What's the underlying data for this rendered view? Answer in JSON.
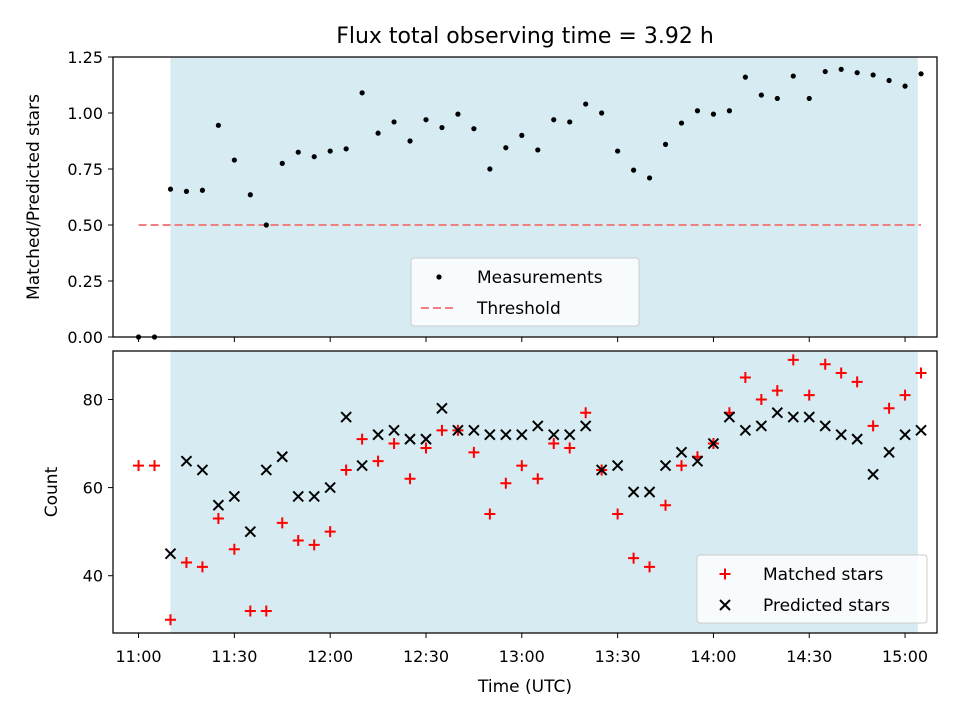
{
  "figure": {
    "title": "Flux total observing time = 3.92 h",
    "xlabel": "Time (UTC)",
    "x_ticks": [
      "11:00",
      "11:30",
      "12:00",
      "12:30",
      "13:00",
      "13:30",
      "14:00",
      "14:30",
      "15:00"
    ],
    "shade_color": "#add8e6"
  },
  "chart_data": [
    {
      "type": "scatter",
      "ylabel": "Matched/Predicted stars",
      "ylim": [
        0,
        1.25
      ],
      "y_ticks": [
        "0.00",
        "0.25",
        "0.50",
        "0.75",
        "1.00",
        "1.25"
      ],
      "x_unit": "time (UTC)",
      "xlim": [
        "10:52",
        "15:10"
      ],
      "shaded_interval": [
        "11:10",
        "15:04"
      ],
      "legend_position": "lower center",
      "series": [
        {
          "name": "Measurements",
          "marker": "dot",
          "color": "#000000",
          "x": [
            "11:00",
            "11:05",
            "11:10",
            "11:15",
            "11:20",
            "11:25",
            "11:30",
            "11:35",
            "11:40",
            "11:45",
            "11:50",
            "11:55",
            "12:00",
            "12:05",
            "12:10",
            "12:15",
            "12:20",
            "12:25",
            "12:30",
            "12:35",
            "12:40",
            "12:45",
            "12:50",
            "12:55",
            "13:00",
            "13:05",
            "13:10",
            "13:15",
            "13:20",
            "13:25",
            "13:30",
            "13:35",
            "13:40",
            "13:45",
            "13:50",
            "13:55",
            "14:00",
            "14:05",
            "14:10",
            "14:15",
            "14:20",
            "14:25",
            "14:30",
            "14:35",
            "14:40",
            "14:45",
            "14:50",
            "14:55",
            "15:00",
            "15:05"
          ],
          "y": [
            0.0,
            0.0,
            0.66,
            0.65,
            0.655,
            0.945,
            0.79,
            0.635,
            0.5,
            0.775,
            0.825,
            0.805,
            0.83,
            0.84,
            1.09,
            0.91,
            0.96,
            0.875,
            0.97,
            0.935,
            0.995,
            0.93,
            0.75,
            0.845,
            0.9,
            0.835,
            0.97,
            0.96,
            1.04,
            1.0,
            0.83,
            0.745,
            0.71,
            0.86,
            0.955,
            1.01,
            0.995,
            1.01,
            1.16,
            1.08,
            1.065,
            1.165,
            1.065,
            1.185,
            1.195,
            1.18,
            1.17,
            1.145,
            1.12,
            1.175
          ]
        },
        {
          "name": "Threshold",
          "style": "dashed",
          "color": "#f08080",
          "x": [
            "11:00",
            "15:05"
          ],
          "y": [
            0.5,
            0.5
          ]
        }
      ]
    },
    {
      "type": "scatter",
      "ylabel": "Count",
      "ylim": [
        27,
        91
      ],
      "y_ticks": [
        "40",
        "60",
        "80"
      ],
      "x_unit": "time (UTC)",
      "xlim": [
        "10:52",
        "15:10"
      ],
      "shaded_interval": [
        "11:10",
        "15:04"
      ],
      "legend_position": "lower right",
      "series": [
        {
          "name": "Matched stars",
          "marker": "plus",
          "color": "#ff0000",
          "x": [
            "11:00",
            "11:05",
            "11:10",
            "11:15",
            "11:20",
            "11:25",
            "11:30",
            "11:35",
            "11:40",
            "11:45",
            "11:50",
            "11:55",
            "12:00",
            "12:05",
            "12:10",
            "12:15",
            "12:20",
            "12:25",
            "12:30",
            "12:35",
            "12:40",
            "12:45",
            "12:50",
            "12:55",
            "13:00",
            "13:05",
            "13:10",
            "13:15",
            "13:20",
            "13:25",
            "13:30",
            "13:35",
            "13:40",
            "13:45",
            "13:50",
            "13:55",
            "14:00",
            "14:05",
            "14:10",
            "14:15",
            "14:20",
            "14:25",
            "14:30",
            "14:35",
            "14:40",
            "14:45",
            "14:50",
            "14:55",
            "15:00",
            "15:05"
          ],
          "y": [
            65,
            65,
            30,
            43,
            42,
            53,
            46,
            32,
            32,
            52,
            48,
            47,
            50,
            64,
            71,
            66,
            70,
            62,
            69,
            73,
            73,
            68,
            54,
            61,
            65,
            62,
            70,
            69,
            77,
            64,
            54,
            44,
            42,
            56,
            65,
            67,
            70,
            77,
            85,
            80,
            82,
            89,
            81,
            88,
            86,
            84,
            74,
            78,
            81,
            86
          ]
        },
        {
          "name": "Predicted stars",
          "marker": "x",
          "color": "#000000",
          "x": [
            "11:10",
            "11:15",
            "11:20",
            "11:25",
            "11:30",
            "11:35",
            "11:40",
            "11:45",
            "11:50",
            "11:55",
            "12:00",
            "12:05",
            "12:10",
            "12:15",
            "12:20",
            "12:25",
            "12:30",
            "12:35",
            "12:40",
            "12:45",
            "12:50",
            "12:55",
            "13:00",
            "13:05",
            "13:10",
            "13:15",
            "13:20",
            "13:25",
            "13:30",
            "13:35",
            "13:40",
            "13:45",
            "13:50",
            "13:55",
            "14:00",
            "14:05",
            "14:10",
            "14:15",
            "14:20",
            "14:25",
            "14:30",
            "14:35",
            "14:40",
            "14:45",
            "14:50",
            "14:55",
            "15:00",
            "15:05"
          ],
          "y": [
            45,
            66,
            64,
            56,
            58,
            50,
            64,
            67,
            58,
            58,
            60,
            76,
            65,
            72,
            73,
            71,
            71,
            78,
            73,
            73,
            72,
            72,
            72,
            74,
            72,
            72,
            74,
            64,
            65,
            59,
            59,
            65,
            68,
            66,
            70,
            76,
            73,
            74,
            77,
            76,
            76,
            74,
            72,
            71,
            63,
            68,
            72,
            73
          ]
        }
      ]
    }
  ]
}
